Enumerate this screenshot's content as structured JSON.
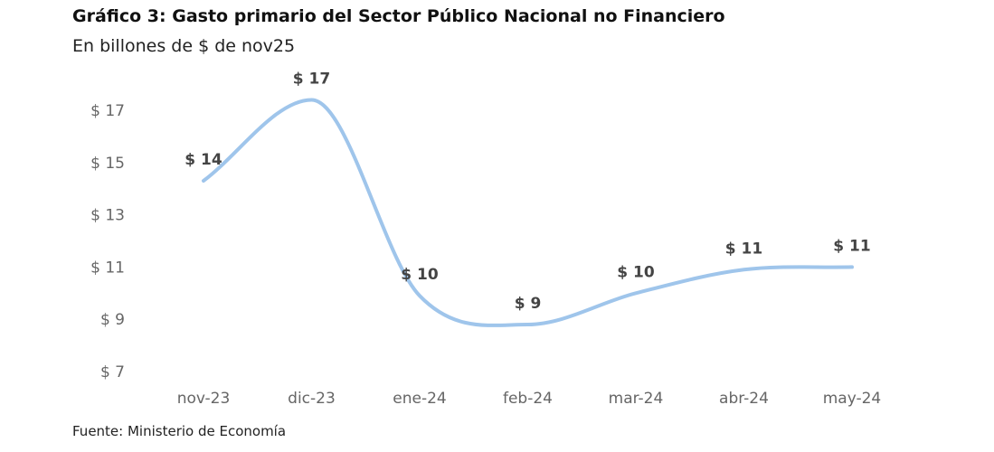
{
  "title": "Gráfico 3: Gasto primario del Sector Público Nacional no Financiero",
  "subtitle": "En billones de $ de nov25",
  "source": "Fuente: Ministerio de Economía",
  "colors": {
    "line": "#9fc5eb",
    "data_label": "#444444",
    "tick_label": "#666666"
  },
  "chart_data": {
    "type": "line",
    "title": "Gráfico 3: Gasto primario del Sector Público Nacional no Financiero",
    "subtitle": "En billones de $ de nov25",
    "categories": [
      "nov-23",
      "dic-23",
      "ene-24",
      "feb-24",
      "mar-24",
      "abr-24",
      "may-24"
    ],
    "series": [
      {
        "values": [
          14.3,
          17.4,
          9.9,
          8.8,
          10.0,
          10.9,
          11.0
        ],
        "labels": [
          "$ 14",
          "$ 17",
          "$ 10",
          "$ 9",
          "$ 10",
          "$ 11",
          "$ 11"
        ]
      }
    ],
    "y_ticks": [
      7,
      9,
      11,
      13,
      15,
      17
    ],
    "y_tick_labels": [
      "$ 7",
      "$ 9",
      "$ 11",
      "$ 13",
      "$ 15",
      "$ 17"
    ],
    "ylim": [
      7,
      17
    ],
    "grid": false,
    "legend": "none",
    "line_style": "smooth"
  }
}
